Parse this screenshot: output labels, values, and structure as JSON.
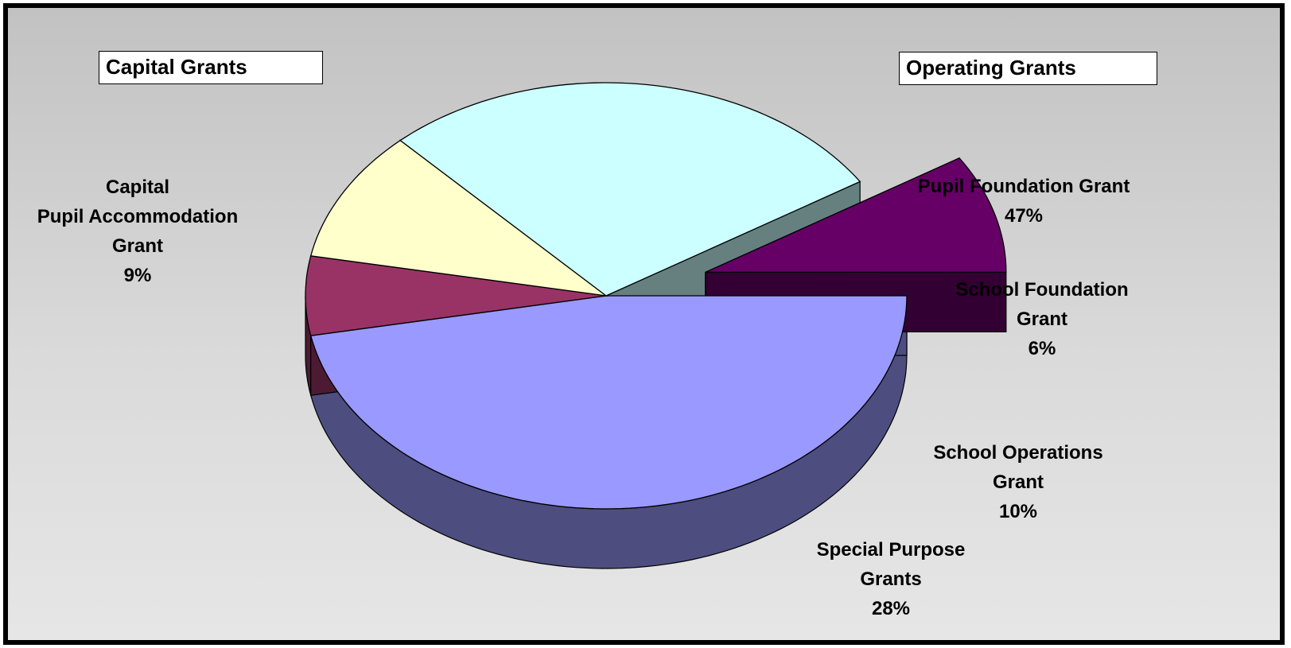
{
  "chart_data": {
    "type": "pie",
    "style": "3d-exploded",
    "groups": [
      "Capital Grants",
      "Operating Grants"
    ],
    "slices": [
      {
        "name_lines": [
          "Pupil Foundation Grant"
        ],
        "percent_label": "47%",
        "value": 47,
        "group": "Operating Grants",
        "color": "#9999ff",
        "side_color": "#4d4d80",
        "exploded": false
      },
      {
        "name_lines": [
          "School Foundation",
          "Grant"
        ],
        "percent_label": "6%",
        "value": 6,
        "group": "Operating Grants",
        "color": "#993366",
        "side_color": "#4d1a33",
        "exploded": false
      },
      {
        "name_lines": [
          "School Operations",
          "Grant"
        ],
        "percent_label": "10%",
        "value": 10,
        "group": "Operating Grants",
        "color": "#ffffcc",
        "side_color": "#808066",
        "exploded": false
      },
      {
        "name_lines": [
          "Special Purpose",
          "Grants"
        ],
        "percent_label": "28%",
        "value": 28,
        "group": "Operating Grants",
        "color": "#ccffff",
        "side_color": "#668080",
        "exploded": false
      },
      {
        "name_lines": [
          "Capital",
          "Pupil Accommodation",
          "Grant"
        ],
        "percent_label": "9%",
        "value": 9,
        "group": "Capital Grants",
        "color": "#660066",
        "side_color": "#330033",
        "exploded": true
      }
    ]
  }
}
